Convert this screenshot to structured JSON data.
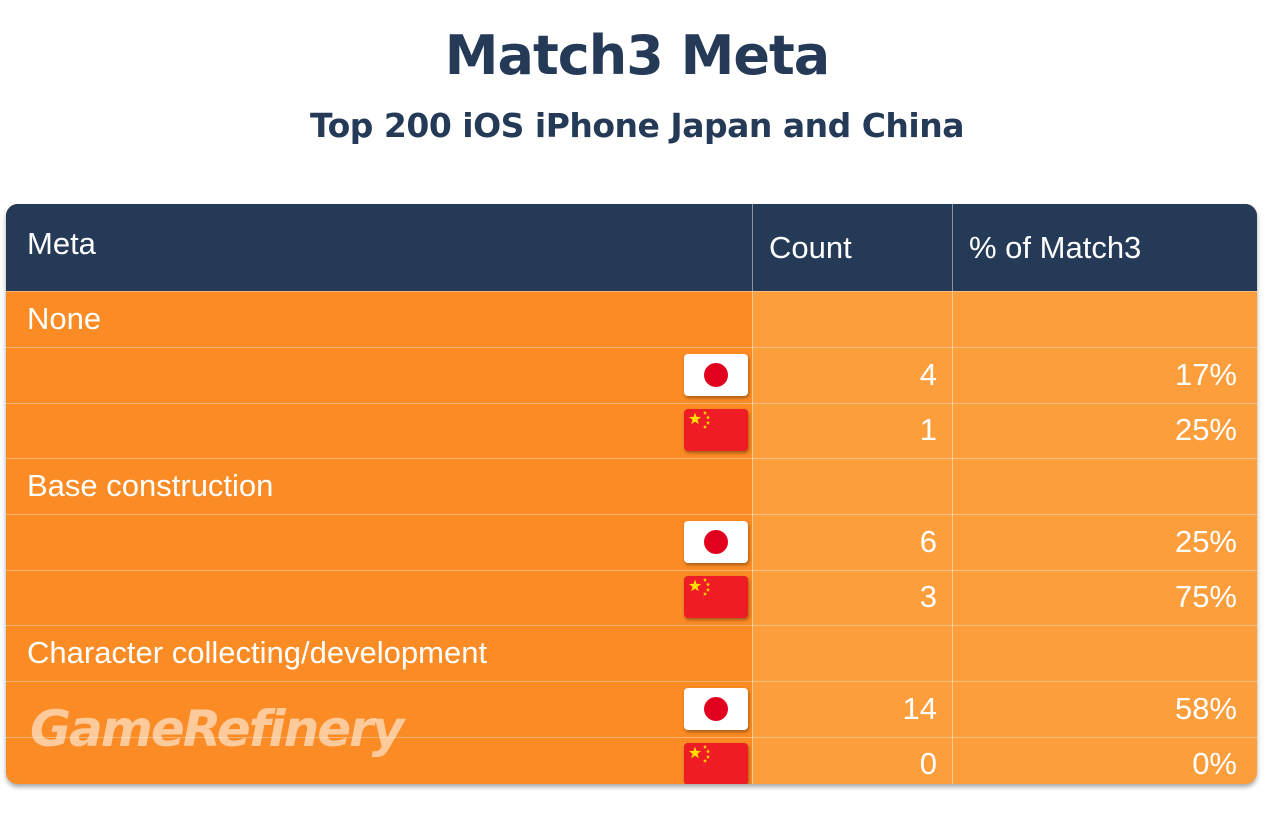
{
  "title": "Match3 Meta",
  "subtitle": "Top 200 iOS iPhone Japan and China",
  "watermark": "GameRefinery",
  "colors": {
    "header_bg": "#243a57",
    "meta_col_bg": "#fb8b24",
    "value_col_bg": "#fd9e3d",
    "japan_red": "#e2001f",
    "china_red": "#ee1c25",
    "china_star": "#ffde00"
  },
  "chart_data": {
    "type": "table",
    "title": "Match3 Meta",
    "subtitle": "Top 200 iOS iPhone Japan and China",
    "columns": [
      "Meta",
      "Count",
      "% of Match3"
    ],
    "groups": [
      {
        "meta": "None",
        "rows": [
          {
            "country_icon": "japan-flag-icon",
            "count": "4",
            "percent": "17%"
          },
          {
            "country_icon": "china-flag-icon",
            "count": "1",
            "percent": "25%"
          }
        ]
      },
      {
        "meta": "Base construction",
        "rows": [
          {
            "country_icon": "japan-flag-icon",
            "count": "6",
            "percent": "25%"
          },
          {
            "country_icon": "china-flag-icon",
            "count": "3",
            "percent": "75%"
          }
        ]
      },
      {
        "meta": "Character collecting/development",
        "rows": [
          {
            "country_icon": "japan-flag-icon",
            "count": "14",
            "percent": "58%"
          },
          {
            "country_icon": "china-flag-icon",
            "count": "0",
            "percent": "0%"
          }
        ]
      }
    ]
  }
}
